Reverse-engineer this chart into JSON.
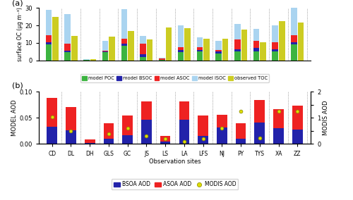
{
  "sites": [
    "CD",
    "DL",
    "DH",
    "GLS",
    "GC",
    "JS",
    "LS",
    "LA",
    "LFS",
    "NJ",
    "PY",
    "TYS",
    "XA",
    "ZZ"
  ],
  "poc": [
    9.0,
    4.5,
    0.1,
    4.5,
    8.5,
    2.0,
    0.1,
    4.5,
    5.0,
    4.0,
    5.0,
    5.0,
    5.0,
    9.0
  ],
  "bsoc": [
    1.5,
    1.0,
    0.05,
    0.5,
    1.0,
    1.5,
    0.05,
    1.5,
    1.0,
    1.0,
    1.5,
    2.0,
    1.5,
    1.5
  ],
  "asoc": [
    4.0,
    4.0,
    0.1,
    0.5,
    3.0,
    6.0,
    1.0,
    1.5,
    1.5,
    1.0,
    5.5,
    4.0,
    4.0,
    4.0
  ],
  "isoc": [
    14.5,
    17.0,
    0.5,
    5.5,
    17.0,
    4.5,
    0.5,
    12.5,
    5.5,
    5.0,
    9.0,
    7.0,
    9.5,
    15.5
  ],
  "toc": [
    25.0,
    14.0,
    0.7,
    13.5,
    17.0,
    12.0,
    19.0,
    18.5,
    12.5,
    12.5,
    17.5,
    10.5,
    22.5,
    21.5
  ],
  "bsoa_aod": [
    0.033,
    0.026,
    0.002,
    0.01,
    0.017,
    0.046,
    0.005,
    0.046,
    0.015,
    0.031,
    0.01,
    0.041,
    0.03,
    0.028
  ],
  "asoa_aod": [
    0.055,
    0.044,
    0.007,
    0.03,
    0.037,
    0.036,
    0.01,
    0.035,
    0.04,
    0.025,
    0.03,
    0.043,
    0.037,
    0.045
  ],
  "modis_aod": [
    0.052,
    0.025,
    null,
    0.02,
    0.03,
    0.015,
    0.01,
    0.005,
    0.01,
    0.03,
    0.063,
    0.012,
    0.063,
    0.063
  ],
  "color_poc": "#3cb440",
  "color_bsoc": "#2222aa",
  "color_asoc": "#ee2222",
  "color_isoc": "#aad4f0",
  "color_toc": "#cccc22",
  "color_bsoa": "#2222aa",
  "color_asoa": "#ee2222",
  "color_modis": "#dddd00",
  "ylim_a": [
    0,
    30
  ],
  "ylim_b": [
    0,
    0.1
  ],
  "yticks_a": [
    0,
    10,
    20,
    30
  ],
  "yticks_b": [
    0.0,
    0.05,
    0.1
  ],
  "ylabel_a": "surface OC (µg m⁻³)",
  "ylabel_b": "MODEL AOD",
  "ylabel_b_right": "MODIS AOD",
  "xlabel_b": "Observation sites",
  "label_a": "(a)",
  "label_b": "(b)"
}
